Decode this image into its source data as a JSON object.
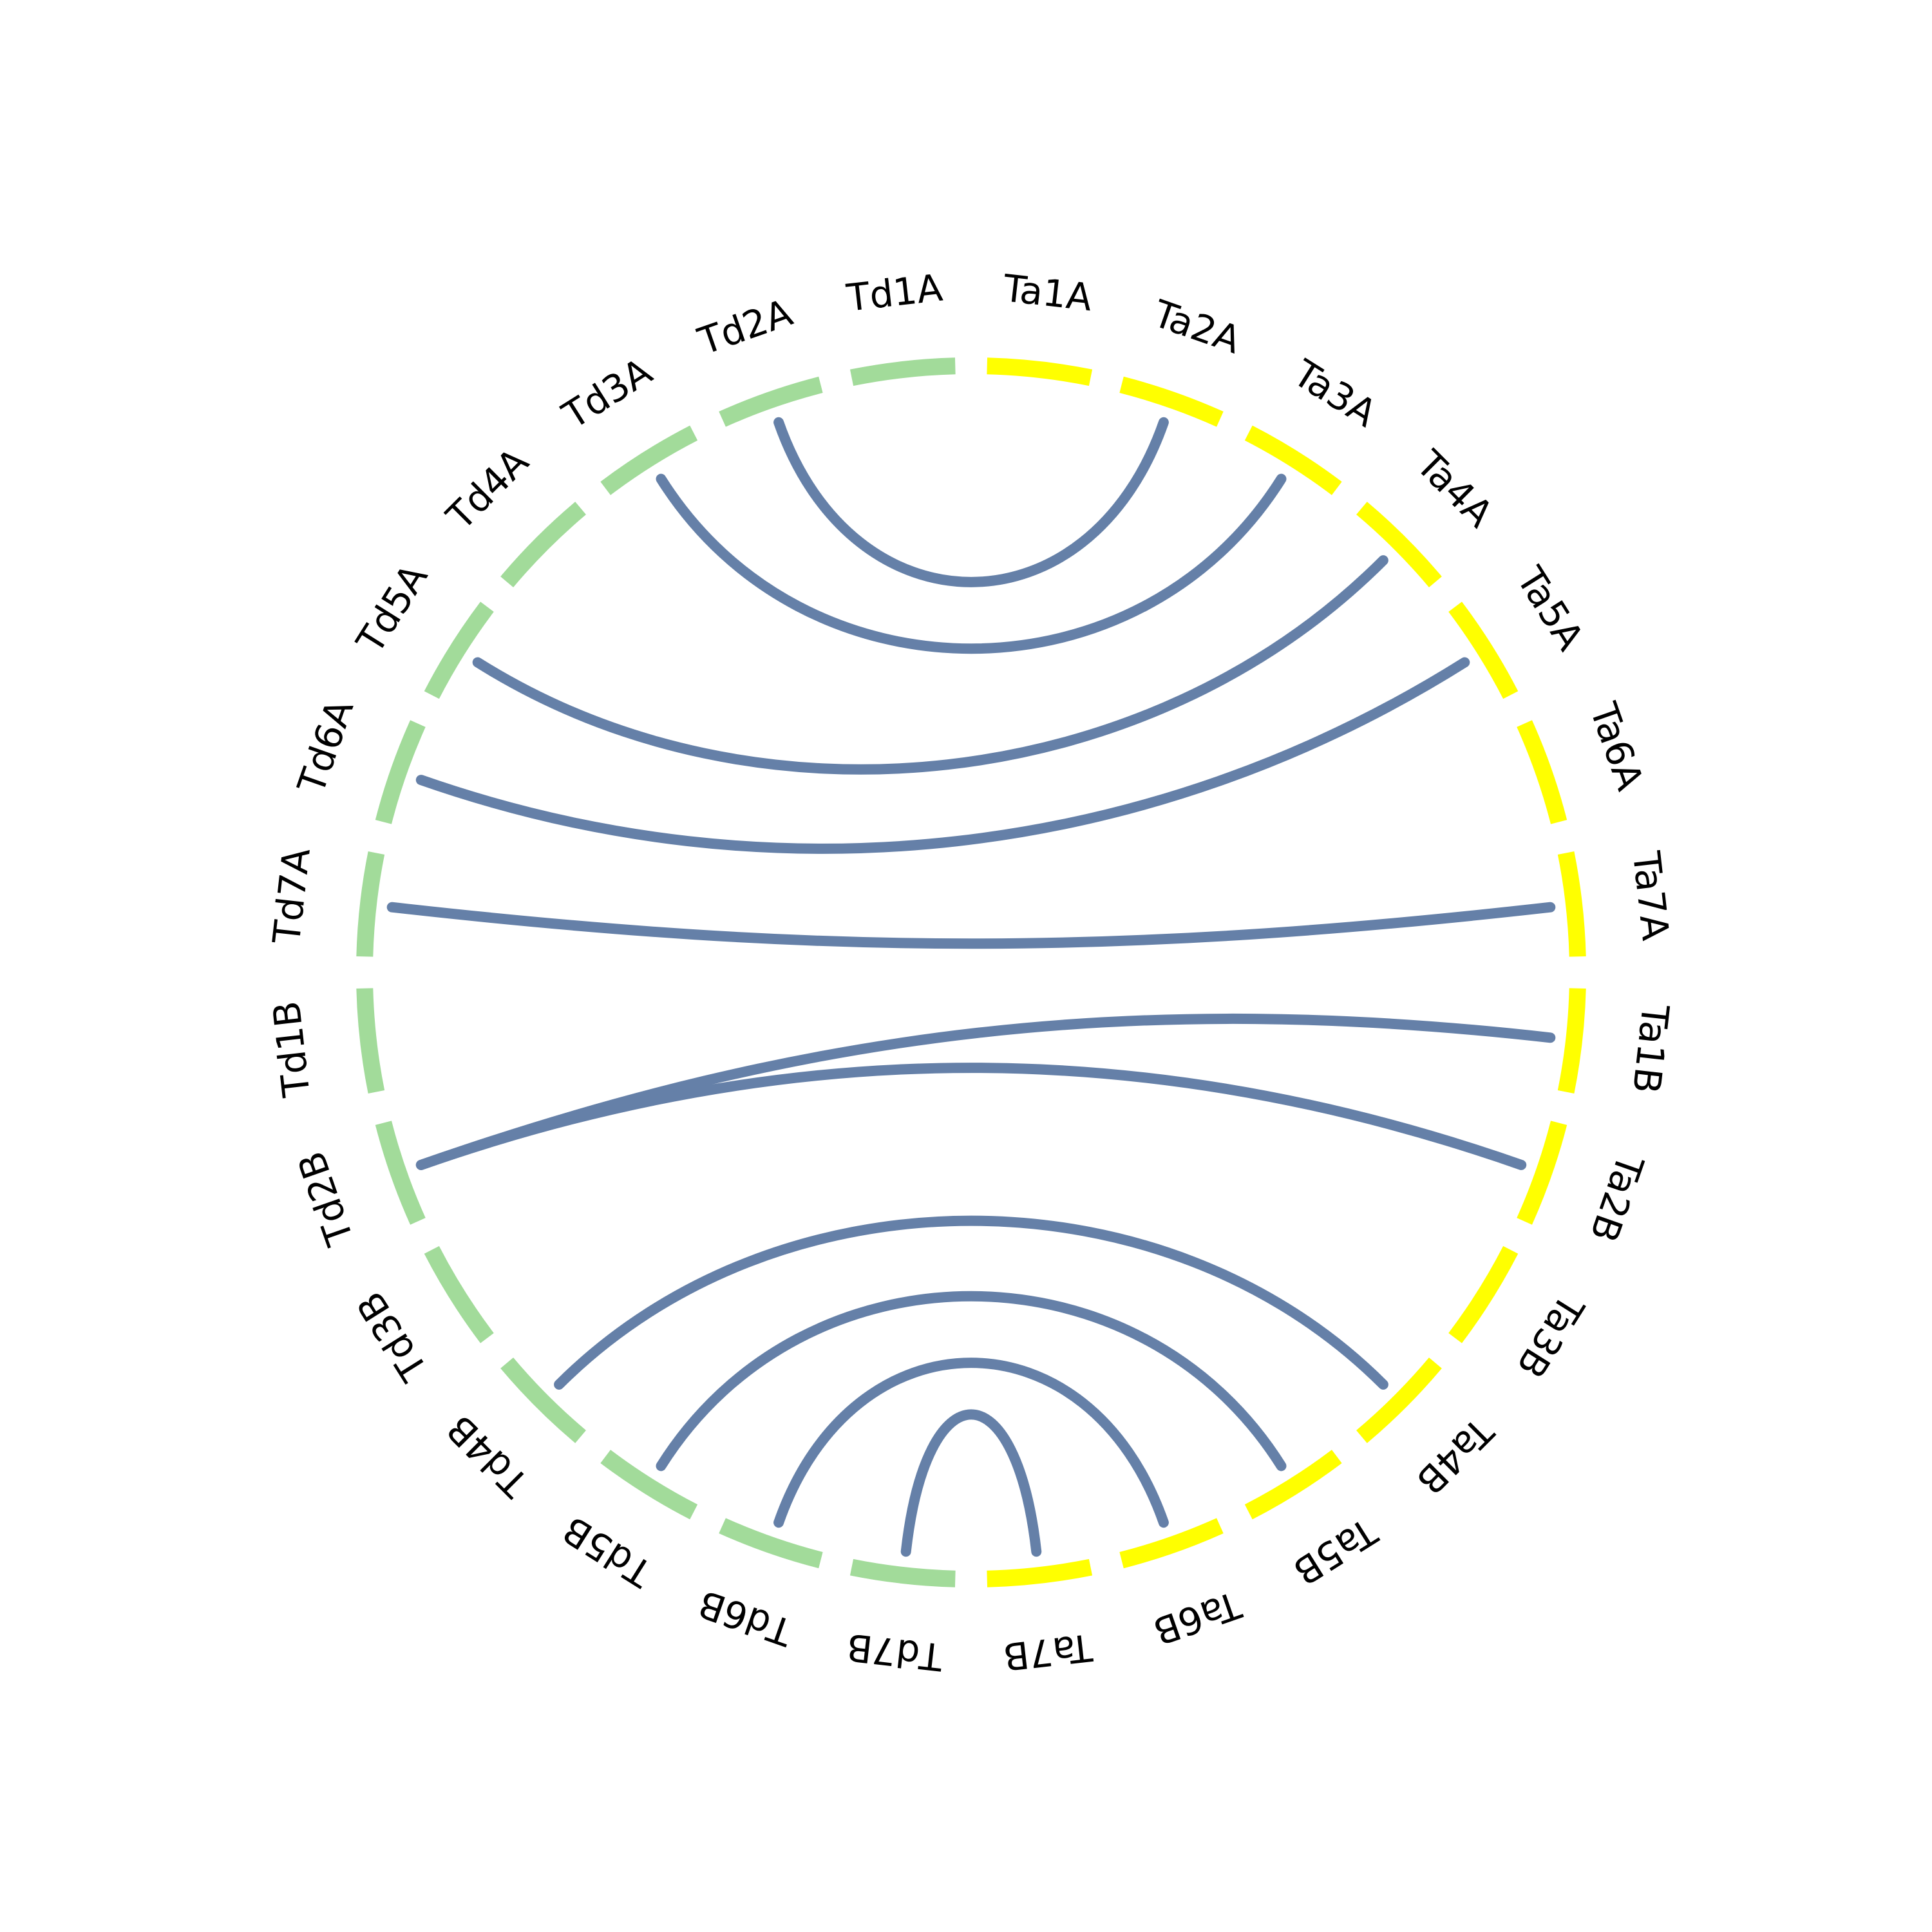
{
  "colors": {
    "td": "#a2db9a",
    "ta": "#ffff00",
    "link": "#6580a8",
    "text": "#000000"
  },
  "chromosomes": [
    {
      "id": "Ta1A",
      "label": "Ta1A",
      "group": "ta"
    },
    {
      "id": "Ta2A",
      "label": "Ta2A",
      "group": "ta"
    },
    {
      "id": "Ta3A",
      "label": "Ta3A",
      "group": "ta"
    },
    {
      "id": "Ta4A",
      "label": "Ta4A",
      "group": "ta"
    },
    {
      "id": "Ta5A",
      "label": "Ta5A",
      "group": "ta"
    },
    {
      "id": "Ta6A",
      "label": "Ta6A",
      "group": "ta"
    },
    {
      "id": "Ta7A",
      "label": "Ta7A",
      "group": "ta"
    },
    {
      "id": "Ta1B",
      "label": "Ta1B",
      "group": "ta"
    },
    {
      "id": "Ta2B",
      "label": "Ta2B",
      "group": "ta"
    },
    {
      "id": "Ta3B",
      "label": "Ta3B",
      "group": "ta"
    },
    {
      "id": "Ta4B",
      "label": "Ta4B",
      "group": "ta"
    },
    {
      "id": "Ta5B",
      "label": "Ta5B",
      "group": "ta"
    },
    {
      "id": "Ta6B",
      "label": "Ta6B",
      "group": "ta"
    },
    {
      "id": "Ta7B",
      "label": "Ta7B",
      "group": "ta"
    },
    {
      "id": "Td7B",
      "label": "Td7B",
      "group": "td"
    },
    {
      "id": "Td6B",
      "label": "Td6B",
      "group": "td"
    },
    {
      "id": "Td5B",
      "label": "Td5B",
      "group": "td"
    },
    {
      "id": "Td4B",
      "label": "Td4B",
      "group": "td"
    },
    {
      "id": "Td3B",
      "label": "Td3B",
      "group": "td"
    },
    {
      "id": "Td2B",
      "label": "Td2B",
      "group": "td"
    },
    {
      "id": "Td1B",
      "label": "Td1B",
      "group": "td"
    },
    {
      "id": "Td7A",
      "label": "Td7A",
      "group": "td"
    },
    {
      "id": "Td6A",
      "label": "Td6A",
      "group": "td"
    },
    {
      "id": "Td5A",
      "label": "Td5A",
      "group": "td"
    },
    {
      "id": "Td4A",
      "label": "Td4A",
      "group": "td"
    },
    {
      "id": "Td3A",
      "label": "Td3A",
      "group": "td"
    },
    {
      "id": "Td2A",
      "label": "Td2A",
      "group": "td"
    },
    {
      "id": "Td1A",
      "label": "Td1A",
      "group": "td"
    }
  ],
  "links": [
    {
      "from": "Td2A",
      "to": "Ta2A"
    },
    {
      "from": "Td3A",
      "to": "Ta3A"
    },
    {
      "from": "Td5A",
      "to": "Ta4A"
    },
    {
      "from": "Td6A",
      "to": "Ta5A"
    },
    {
      "from": "Td7A",
      "to": "Ta7A"
    },
    {
      "from": "Td2B",
      "to": "Ta1B"
    },
    {
      "from": "Td2B",
      "to": "Ta2B"
    },
    {
      "from": "Td4B",
      "to": "Ta4B"
    },
    {
      "from": "Td5B",
      "to": "Ta5B"
    },
    {
      "from": "Td6B",
      "to": "Ta6B"
    },
    {
      "from": "Td7B",
      "to": "Ta7B"
    }
  ]
}
